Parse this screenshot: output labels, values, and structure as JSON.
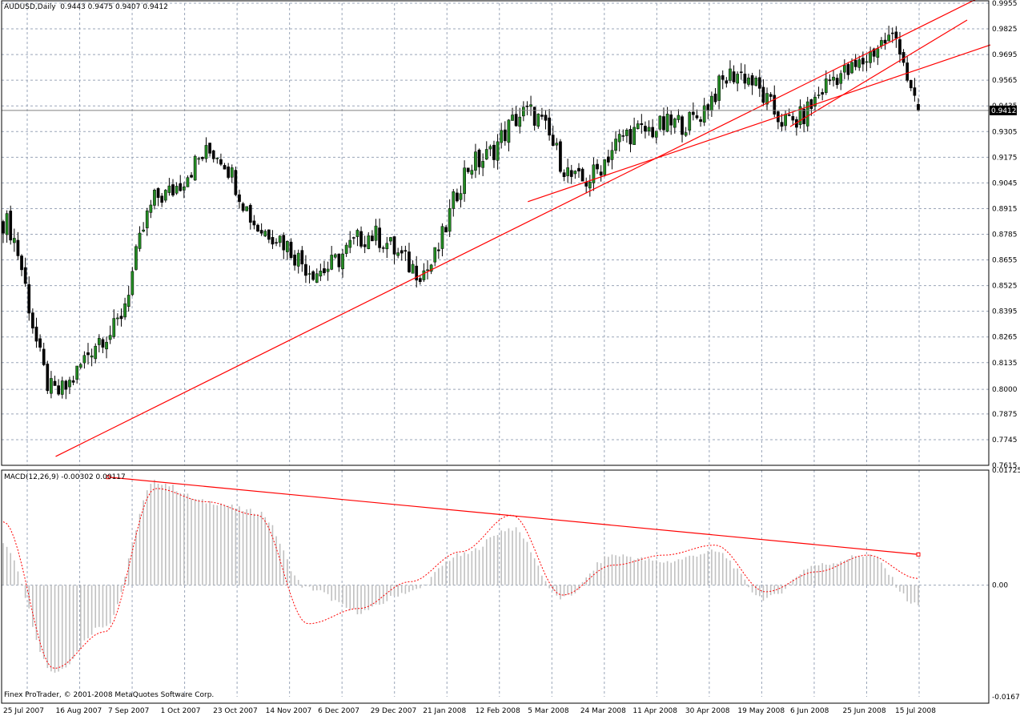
{
  "price_panel": {
    "title": "AUDUSD,Daily",
    "ohlc": "0.9443 0.9475 0.9407 0.9412",
    "current_price_label": "0.9412"
  },
  "macd_panel": {
    "title": "MACD(12,26,9) -0.00302 0.00117"
  },
  "copyright": "Finex ProTrader, © 2001-2008 MetaQuotes Software Corp.",
  "colors": {
    "bull_candle": "#228b22",
    "bear_candle": "#000000",
    "trendline": "#ff0000",
    "grid": "#9aa5b8",
    "histogram": "#c0c0c0",
    "signal": "#ff0000"
  },
  "chart_data": [
    {
      "type": "candlestick",
      "name": "price",
      "title": "AUDUSD,Daily",
      "ylim": [
        0.7615,
        0.9955
      ],
      "y_ticks": [
        "0.9955",
        "0.9825",
        "0.9695",
        "0.9565",
        "0.9435",
        "0.9305",
        "0.9175",
        "0.9045",
        "0.8915",
        "0.8785",
        "0.8655",
        "0.8525",
        "0.8395",
        "0.8265",
        "0.8135",
        "0.8000",
        "0.7875",
        "0.7745",
        "0.7615"
      ],
      "x_labels": [
        "25 Jul 2007",
        "16 Aug 2007",
        "7 Sep 2007",
        "1 Oct 2007",
        "23 Oct 2007",
        "14 Nov 2007",
        "6 Dec 2007",
        "29 Dec 2007",
        "21 Jan 2008",
        "12 Feb 2008",
        "5 Mar 2008",
        "24 Mar 2008",
        "11 Apr 2008",
        "30 Apr 2008",
        "19 May 2008",
        "6 Jun 2008",
        "25 Jun 2008",
        "15 Jul 2008"
      ],
      "grid": true,
      "current_price": 0.9412,
      "last_bar_ohlc": [
        0.9443,
        0.9475,
        0.9407,
        0.9412
      ],
      "close_path": [
        {
          "x": "25 Jul 2007",
          "y": 0.885
        },
        {
          "x": "16 Aug 2007",
          "y": 0.798
        },
        {
          "x": "7 Sep 2007",
          "y": 0.828
        },
        {
          "x": "1 Oct 2007",
          "y": 0.898
        },
        {
          "x": "23 Oct 2007",
          "y": 0.92
        },
        {
          "x": "14 Nov 2007",
          "y": 0.88
        },
        {
          "x": "6 Dec 2007",
          "y": 0.86
        },
        {
          "x": "29 Dec 2007",
          "y": 0.878
        },
        {
          "x": "21 Jan 2008",
          "y": 0.86
        },
        {
          "x": "12 Feb 2008",
          "y": 0.915
        },
        {
          "x": "5 Mar 2008",
          "y": 0.94
        },
        {
          "x": "24 Mar 2008",
          "y": 0.905
        },
        {
          "x": "11 Apr 2008",
          "y": 0.93
        },
        {
          "x": "30 Apr 2008",
          "y": 0.935
        },
        {
          "x": "19 May 2008",
          "y": 0.96
        },
        {
          "x": "6 Jun 2008",
          "y": 0.935
        },
        {
          "x": "25 Jun 2008",
          "y": 0.96
        },
        {
          "x": "15 Jul 2008",
          "y": 0.978
        },
        {
          "x": "end",
          "y": 0.9412
        }
      ],
      "trendlines": [
        {
          "from": {
            "x": "16 Aug 2007",
            "y": 0.766
          },
          "to": {
            "x": "end",
            "y": 0.983
          }
        },
        {
          "from": {
            "x": "5 Mar 2008",
            "y": 0.895
          },
          "to": {
            "x": "end",
            "y": 0.962
          }
        },
        {
          "from": {
            "x": "6 Jun 2008",
            "y": 0.933
          },
          "to": {
            "x": "15 Jul 2008",
            "y": 0.965
          }
        }
      ]
    },
    {
      "type": "bar",
      "name": "MACD(12,26,9)",
      "title": "MACD(12,26,9) -0.00302 0.00117",
      "ylim": [
        -0.01675,
        0.01725
      ],
      "y_ticks": [
        "0.01725",
        "0.00",
        "-0.01675"
      ],
      "series": [
        {
          "name": "MACD",
          "style": "histogram",
          "values": [
            0.006,
            -0.013,
            -0.006,
            0.0155,
            0.0125,
            0.011,
            -0.0005,
            -0.004,
            -0.001,
            0.0045,
            0.0085,
            -0.002,
            0.0045,
            0.0035,
            0.005,
            -0.002,
            0.003,
            0.0045,
            -0.003
          ]
        },
        {
          "name": "Signal",
          "style": "dotted-line",
          "values": [
            0.0095,
            -0.0125,
            -0.007,
            0.0145,
            0.0125,
            0.0105,
            -0.0058,
            -0.0035,
            0.0005,
            0.005,
            0.0105,
            -0.0015,
            0.003,
            0.0045,
            0.006,
            -0.001,
            0.002,
            0.0045,
            0.001
          ]
        }
      ],
      "trendlines": [
        {
          "from": {
            "x": "7 Sep 2007",
            "y": 0.0162
          },
          "to": {
            "x": "end",
            "y": 0.0046
          }
        }
      ]
    }
  ]
}
